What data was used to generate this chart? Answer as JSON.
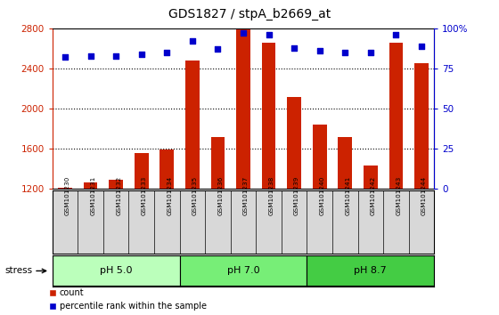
{
  "title": "GDS1827 / stpA_b2669_at",
  "samples": [
    "GSM101230",
    "GSM101231",
    "GSM101232",
    "GSM101233",
    "GSM101234",
    "GSM101235",
    "GSM101236",
    "GSM101237",
    "GSM101238",
    "GSM101239",
    "GSM101240",
    "GSM101241",
    "GSM101242",
    "GSM101243",
    "GSM101244"
  ],
  "counts": [
    1210,
    1270,
    1290,
    1560,
    1590,
    2480,
    1720,
    2790,
    2660,
    2120,
    1840,
    1720,
    1430,
    2660,
    2450
  ],
  "percentiles": [
    82,
    83,
    83,
    84,
    85,
    92,
    87,
    97,
    96,
    88,
    86,
    85,
    85,
    96,
    89
  ],
  "groups": [
    {
      "label": "pH 5.0",
      "start": 0,
      "end": 5,
      "color": "#bbffbb"
    },
    {
      "label": "pH 7.0",
      "start": 5,
      "end": 10,
      "color": "#77ee77"
    },
    {
      "label": "pH 8.7",
      "start": 10,
      "end": 15,
      "color": "#44cc44"
    }
  ],
  "stress_label": "stress",
  "ylim_left": [
    1200,
    2800
  ],
  "ylim_right": [
    0,
    100
  ],
  "yticks_left": [
    1200,
    1600,
    2000,
    2400,
    2800
  ],
  "yticks_right": [
    0,
    25,
    50,
    75,
    100
  ],
  "bar_color": "#cc2200",
  "dot_color": "#0000cc",
  "bar_bottom": 1200,
  "cell_bg_color": "#d8d8d8",
  "title_fontsize": 10,
  "axis_label_color_left": "#cc2200",
  "axis_label_color_right": "#0000cc",
  "gridline_color": "#000000",
  "fig_width": 5.6,
  "fig_height": 3.54,
  "dpi": 100
}
